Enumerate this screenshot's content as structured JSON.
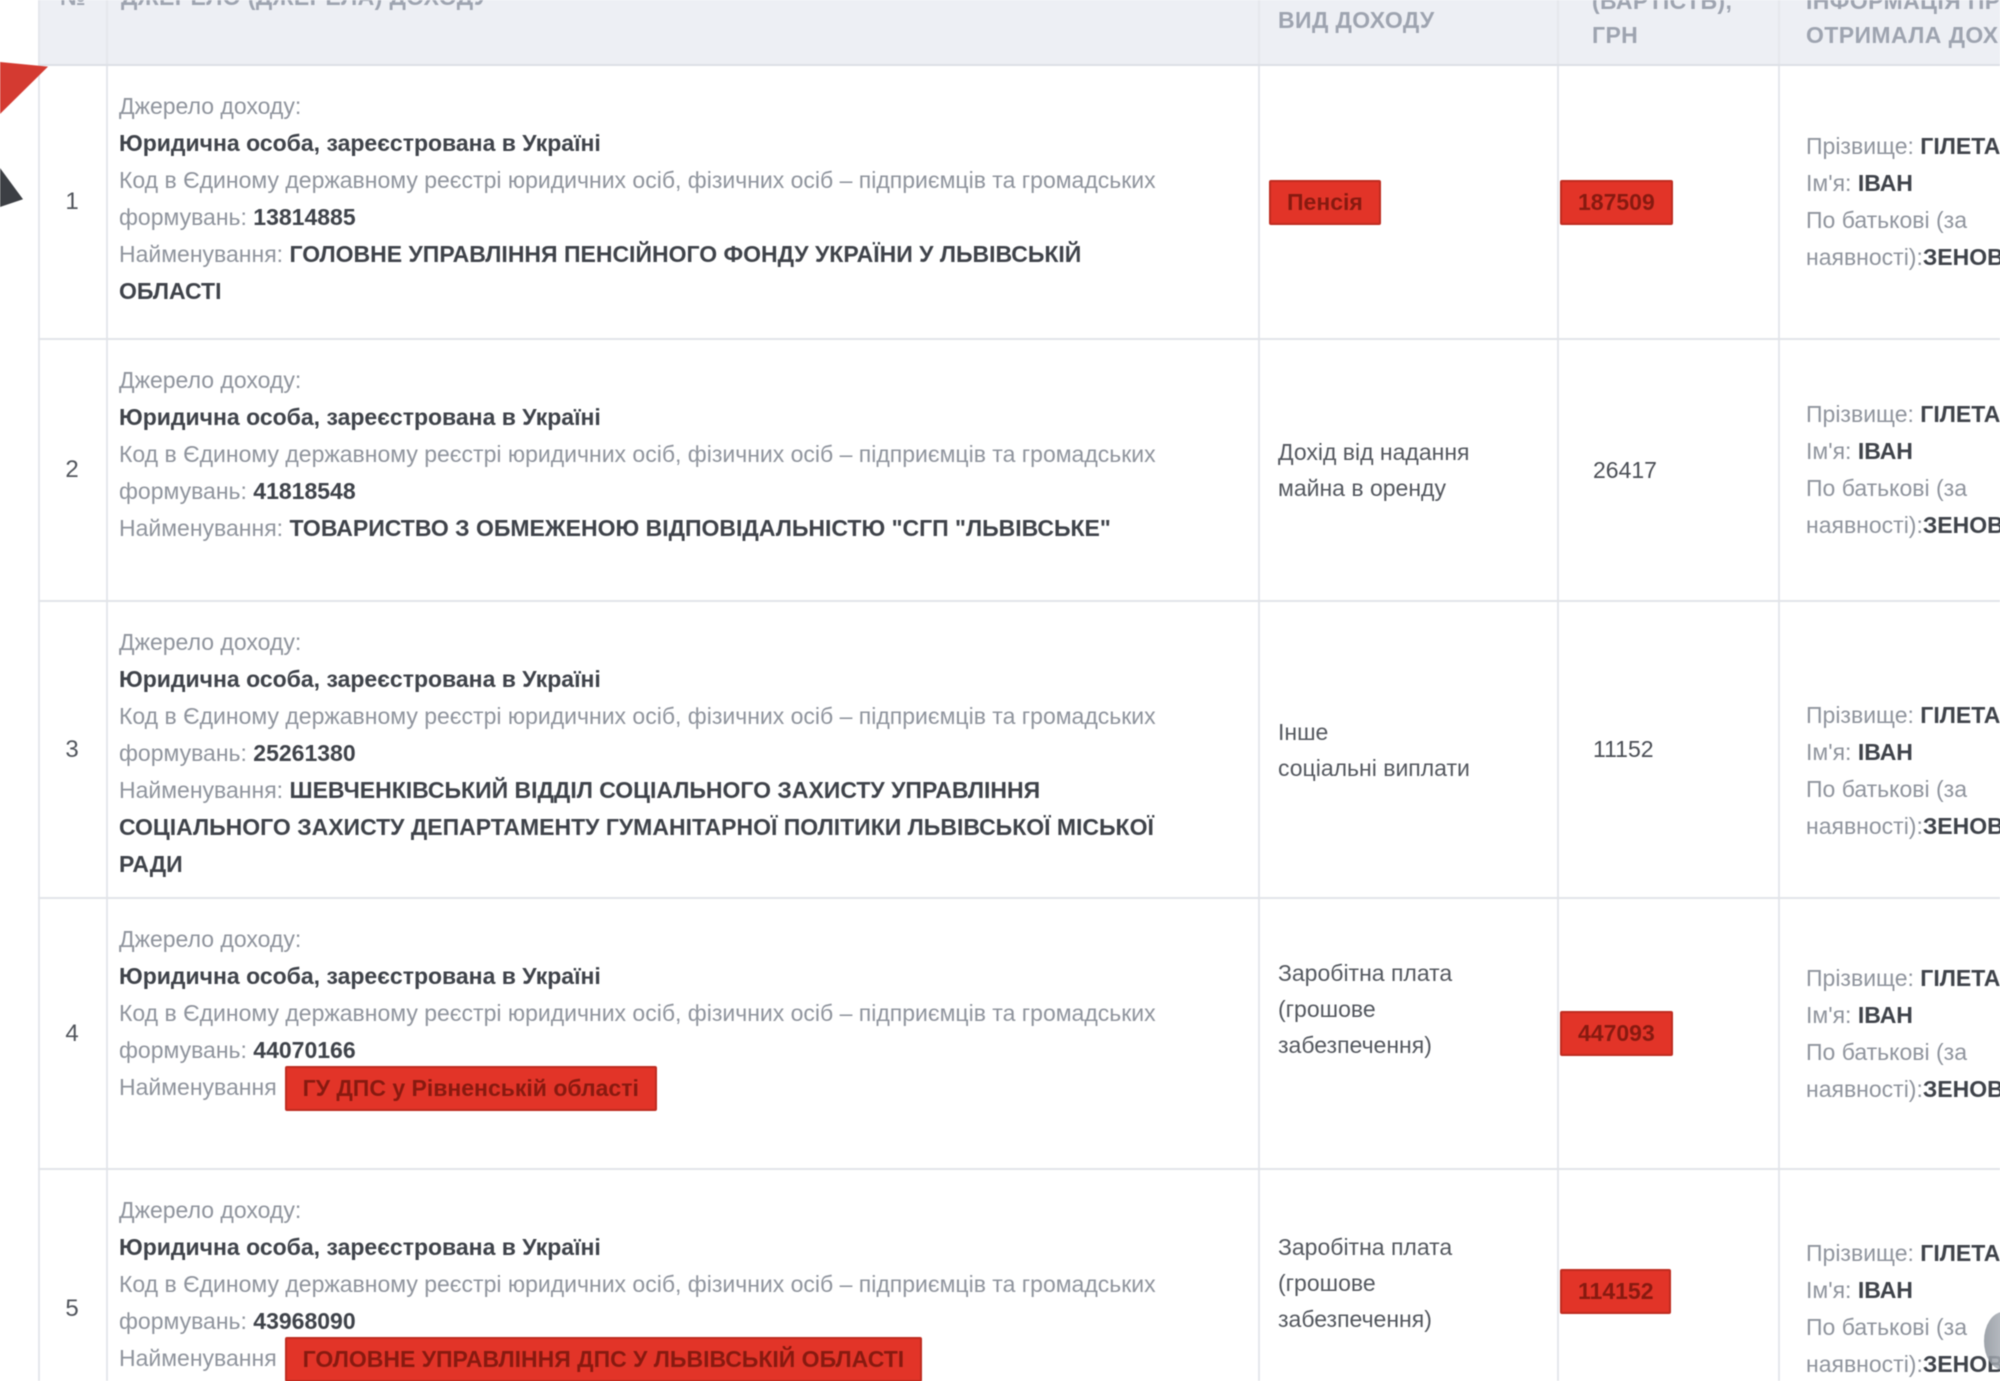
{
  "table": {
    "headers": {
      "num": "№",
      "source": "ДЖЕРЕЛО (ДЖЕРЕЛА) ДОХОДУ",
      "type": "ВИД ДОХОДУ",
      "value_line1": "(ВАРТІСТЬ),",
      "value_line2": "ГРН",
      "info_line1": "ІНФОРМАЦІЯ ПРО",
      "info_line2": "ОТРИМАЛА ДОХІД"
    },
    "labels": {
      "source_label": "Джерело доходу:",
      "entity_type": "Юридична особа, зареєстрована в Україні",
      "code_label": "Код в Єдиному державному реєстрі юридичних осіб, фізичних осіб – підприємців та громадських формувань:",
      "name_label": "Найменування:",
      "name_label_short": "Найменування",
      "surname_label": "Прізвище:",
      "firstname_label": "Ім'я:",
      "patronymic_line1": "По батькові (за",
      "patronymic_line2": "наявності):"
    },
    "person": {
      "surname": "ГІЛЕТА",
      "firstname": "ІВАН",
      "patronymic": "ЗЕНОВІЙ"
    },
    "rows": [
      {
        "num": "1",
        "code": "13814885",
        "name": "ГОЛОВНЕ УПРАВЛІННЯ ПЕНСІЙНОГО ФОНДУ УКРАЇНИ У ЛЬВІВСЬКІЙ ОБЛАСТІ",
        "type": "Пенсія",
        "value": "187509",
        "redacted": {
          "type": true,
          "value": true,
          "name": false
        }
      },
      {
        "num": "2",
        "code": "41818548",
        "name": "ТОВАРИСТВО З ОБМЕЖЕНОЮ ВІДПОВІДАЛЬНІСТЮ \"СГП \"ЛЬВІВСЬКЕ\"",
        "type_lines": [
          "Дохід від надання",
          "майна в оренду"
        ],
        "value": "26417",
        "redacted": {
          "type": false,
          "value": false,
          "name": false
        }
      },
      {
        "num": "3",
        "code": "25261380",
        "name": "ШЕВЧЕНКІВСЬКИЙ ВІДДІЛ СОЦІАЛЬНОГО ЗАХИСТУ УПРАВЛІННЯ СОЦІАЛЬНОГО ЗАХИСТУ ДЕПАРТАМЕНТУ ГУМАНІТАРНОЇ ПОЛІТИКИ ЛЬВІВСЬКОЇ МІСЬКОЇ РАДИ",
        "type_lines": [
          "Інше",
          "соціальні виплати"
        ],
        "value": "11152",
        "redacted": {
          "type": false,
          "value": false,
          "name": false
        }
      },
      {
        "num": "4",
        "code": "44070166",
        "name": "ГУ ДПС у Рівненській області",
        "type_lines": [
          "Заробітна плата",
          "(грошове",
          "забезпечення)"
        ],
        "value": "447093",
        "redacted": {
          "type": false,
          "value": true,
          "name": true
        }
      },
      {
        "num": "5",
        "code": "43968090",
        "name": "ГОЛОВНЕ УПРАВЛІННЯ ДПС У ЛЬВІВСЬКІЙ ОБЛАСТІ",
        "type_lines": [
          "Заробітна плата",
          "(грошове",
          "забезпечення)"
        ],
        "value": "114152",
        "redacted": {
          "type": false,
          "value": true,
          "name": true
        }
      }
    ]
  },
  "colors": {
    "redaction_bg": "#e23428",
    "redaction_border": "#bf2b1f",
    "redaction_text": "#871a10",
    "header_bg": "#edeff4",
    "label_gray": "#8f949d",
    "value_dark": "#3f434a",
    "grid_line": "#e5e7ec",
    "header_text": "#9ea4b0",
    "arrow_red": "#d43a31",
    "arrow_dark": "#3c3f44"
  }
}
